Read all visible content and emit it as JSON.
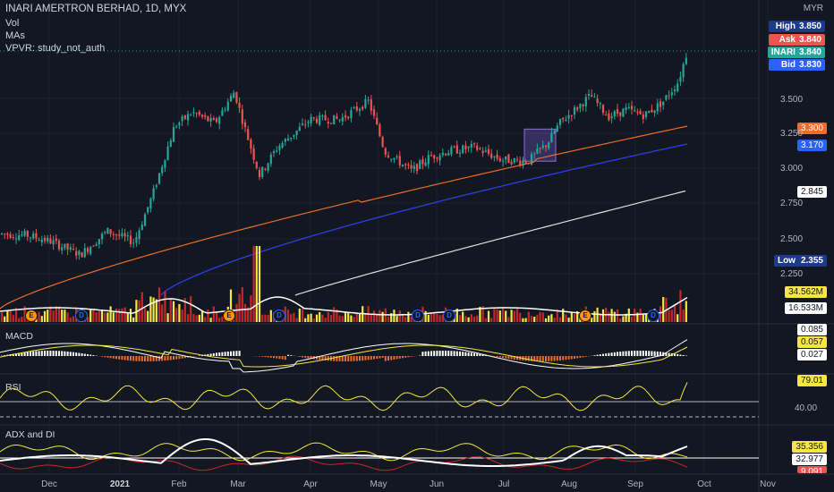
{
  "header": {
    "title": "INARI AMERTRON BERHAD, 1D, MYX",
    "vol_label": "Vol",
    "mas_label": "MAs",
    "vpvr_label": "VPVR: study_not_auth",
    "currency": "MYR"
  },
  "price_badges": [
    {
      "key": "High",
      "value": "3.850",
      "color": "#1e3a8a"
    },
    {
      "key": "Ask",
      "value": "3.840",
      "color": "#ef5350"
    },
    {
      "key": "INARI",
      "value": "3.840",
      "color": "#26a69a"
    },
    {
      "key": "Bid",
      "value": "3.830",
      "color": "#2962ff"
    }
  ],
  "ma_tags": {
    "ma50": {
      "value": "3.300",
      "color": "#ef6c2a"
    },
    "ma100": {
      "value": "3.170",
      "color": "#2962ff"
    },
    "ma200": {
      "value": "2.845",
      "color": "#ffffff"
    }
  },
  "low_tag": {
    "key": "Low",
    "value": "2.355"
  },
  "y_ticks": [
    "3.500",
    "3.250",
    "3.000",
    "2.750",
    "2.500",
    "2.250"
  ],
  "volume_tags": {
    "last": "34.562M",
    "ma": "16.533M"
  },
  "macd": {
    "label": "MACD",
    "tags": [
      "0.085",
      "0.057",
      "0.027"
    ]
  },
  "rsi": {
    "label": "RSI",
    "value": "79.01",
    "level": "40.00"
  },
  "adx": {
    "label": "ADX and DI",
    "tags": [
      "35.356",
      "32.977",
      "9.091"
    ]
  },
  "x_ticks": [
    "Dec",
    "2021",
    "Feb",
    "Mar",
    "Apr",
    "May",
    "Jun",
    "Jul",
    "Aug",
    "Sep",
    "Oct",
    "Nov"
  ],
  "events": [
    "E",
    "D",
    "E",
    "D",
    "D",
    "D",
    "E",
    "D"
  ],
  "chart_data": {
    "type": "candlestick",
    "symbol": "INARI",
    "interval": "1D",
    "ylim": [
      2.2,
      3.9
    ],
    "price_monthly_closes": {
      "x": [
        "Dec",
        "2021",
        "Feb",
        "Mar",
        "Apr",
        "May",
        "Jun",
        "Jul",
        "Aug",
        "Sep",
        "Oct"
      ],
      "close": [
        2.53,
        2.42,
        3.3,
        3.35,
        3.45,
        3.0,
        3.1,
        3.15,
        3.45,
        3.38,
        3.84
      ]
    },
    "series": [
      {
        "name": "INARI",
        "last": 3.84
      },
      {
        "name": "MA 50",
        "last": 3.3
      },
      {
        "name": "MA 100",
        "last": 3.17
      },
      {
        "name": "MA 200",
        "last": 2.845
      }
    ],
    "stats": {
      "high": 3.85,
      "ask": 3.84,
      "bid": 3.83,
      "low": 2.355
    },
    "indicators": {
      "volume_last_m": 34.562,
      "volume_ma_m": 16.533,
      "macd": [
        0.085,
        0.057,
        0.027
      ],
      "rsi": 79.01,
      "rsi_level": 40.0,
      "adx_di": [
        35.356,
        32.977,
        9.091
      ]
    }
  }
}
